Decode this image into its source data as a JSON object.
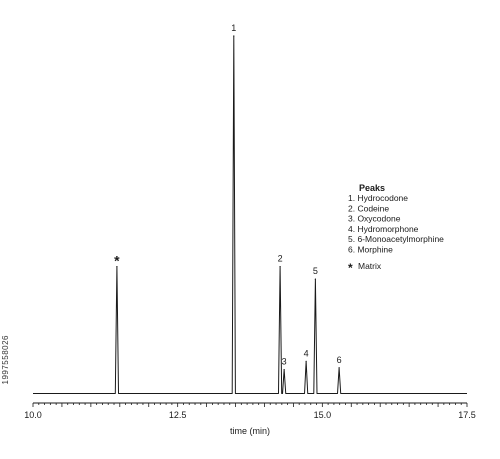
{
  "side_id": "1997558026",
  "chart_data": {
    "type": "line",
    "xlabel": "time (min)",
    "xlim": [
      10.0,
      17.5
    ],
    "x_ticks": [
      "10.0",
      "12.5",
      "15.0",
      "17.5"
    ],
    "ylim": [
      0,
      100
    ],
    "peaks": [
      {
        "label": "*",
        "rt": 11.45,
        "height": 35.5,
        "kind": "matrix"
      },
      {
        "label": "1",
        "rt": 13.47,
        "height": 100
      },
      {
        "label": "2",
        "rt": 14.27,
        "height": 35.5
      },
      {
        "label": "3",
        "rt": 14.34,
        "height": 6.7
      },
      {
        "label": "4",
        "rt": 14.72,
        "height": 9.0
      },
      {
        "label": "5",
        "rt": 14.88,
        "height": 32.0
      },
      {
        "label": "6",
        "rt": 15.29,
        "height": 7.2
      }
    ],
    "legend": {
      "title": "Peaks",
      "entries": [
        "1. Hydrocodone",
        "2. Codeine",
        "3. Oxycodone",
        "4. Hydromorphone",
        "5. 6-Monoacetylmorphine",
        "6. Morphine"
      ],
      "matrix_symbol": "*",
      "matrix_label": "Matrix",
      "placement": "right"
    },
    "colors": {
      "trace": "#1a1a1a",
      "axis": "#1a1a1a"
    }
  }
}
